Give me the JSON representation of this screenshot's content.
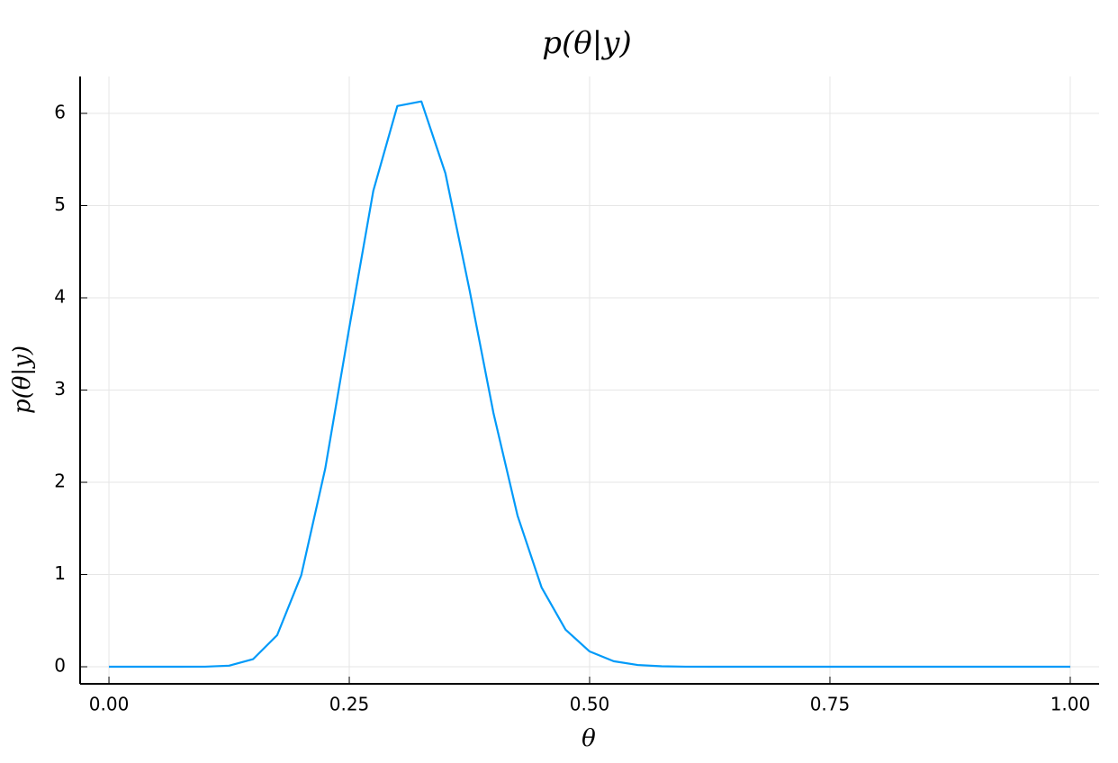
{
  "chart_data": {
    "type": "line",
    "title": "p(θ|y)",
    "x_label": "θ",
    "y_label": "p(θ|y)",
    "x": [
      0,
      0.025,
      0.05,
      0.075,
      0.1,
      0.125,
      0.15,
      0.175,
      0.2,
      0.225,
      0.25,
      0.275,
      0.3,
      0.325,
      0.35,
      0.375,
      0.4,
      0.425,
      0.45,
      0.475,
      0.5,
      0.525,
      0.55,
      0.575,
      0.6,
      0.625,
      0.65,
      0.7,
      0.75,
      0.8,
      0.85,
      0.9,
      0.95,
      1
    ],
    "series": [
      {
        "name": "p(θ|y)",
        "color": "#009af9",
        "values": [
          0,
          0,
          0,
          0,
          0.001,
          0.012,
          0.083,
          0.343,
          0.991,
          2.149,
          3.676,
          5.16,
          6.08,
          6.13,
          5.35,
          4.09,
          2.75,
          1.64,
          0.861,
          0.402,
          0.166,
          0.06,
          0.019,
          0.005,
          0.001,
          0,
          0,
          0,
          0,
          0,
          0,
          0,
          0,
          0
        ]
      }
    ],
    "xlim": [
      -0.03,
      1.03
    ],
    "ylim": [
      -0.185,
      6.4
    ],
    "xticks": [
      {
        "value": 0,
        "label": "0.00"
      },
      {
        "value": 0.25,
        "label": "0.25"
      },
      {
        "value": 0.5,
        "label": "0.50"
      },
      {
        "value": 0.75,
        "label": "0.75"
      },
      {
        "value": 1,
        "label": "1.00"
      }
    ],
    "yticks": [
      0,
      1,
      2,
      3,
      4,
      5,
      6
    ],
    "grid": true
  }
}
